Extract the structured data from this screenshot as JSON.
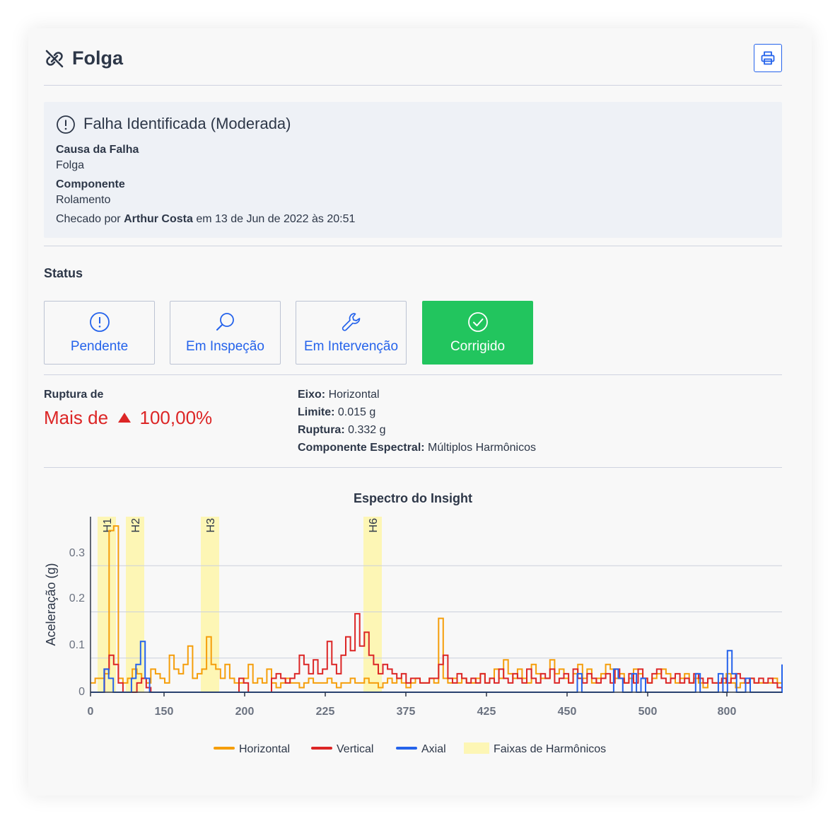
{
  "header": {
    "title": "Folga",
    "title_icon": "disconnected-link-icon",
    "print_icon": "printer-icon"
  },
  "fault": {
    "title": "Falha Identificada (Moderada)",
    "cause_label": "Causa da Falha",
    "cause_value": "Folga",
    "component_label": "Componente",
    "component_value": "Rolamento",
    "checked_prefix": "Checado por",
    "checked_by": "Arthur Costa",
    "checked_suffix": "em 13 de Jun de 2022 às 20:51"
  },
  "status": {
    "title": "Status",
    "buttons": [
      {
        "label": "Pendente",
        "icon": "alert-circle-icon",
        "active": false
      },
      {
        "label": "Em Inspeção",
        "icon": "search-icon",
        "active": false
      },
      {
        "label": "Em Intervenção",
        "icon": "wrench-icon",
        "active": false
      },
      {
        "label": "Corrigido",
        "icon": "check-circle-icon",
        "active": true
      }
    ]
  },
  "rupture": {
    "label": "Ruptura de",
    "prefix": "Mais de",
    "value": "100,00%",
    "up_icon": "triangle-up-icon",
    "eixo_label": "Eixo:",
    "eixo_value": "Horizontal",
    "limite_label": "Limite:",
    "limite_value": "0.015 g",
    "ruptura_label": "Ruptura:",
    "ruptura_value": "0.332 g",
    "comp_label": "Componente Espectral:",
    "comp_value": "Múltiplos Harmônicos"
  },
  "colors": {
    "horizontal": "#f59e0b",
    "vertical": "#dc2626",
    "axial": "#2563eb",
    "band": "#fdf6b5",
    "accent": "#2563eb",
    "success": "#22c55e"
  },
  "chart_data": {
    "type": "line",
    "title": "Espectro do Insight",
    "ylabel": "Aceleração (g)",
    "xlabel": "",
    "ylim": [
      0,
      0.38
    ],
    "xticks": [
      "0",
      "150",
      "200",
      "225",
      "375",
      "425",
      "450",
      "500",
      "800"
    ],
    "yticks": [
      "0",
      "0.1",
      "0.2",
      "0.3"
    ],
    "grid": true,
    "legend_position": "bottom",
    "harmonic_bands": [
      {
        "label": "H1",
        "index": 0
      },
      {
        "label": "H2",
        "index": 1
      },
      {
        "label": "H3",
        "index": 2
      },
      {
        "label": "H6",
        "index": 3
      }
    ],
    "legend": [
      {
        "name": "Horizontal",
        "color": "#f59e0b"
      },
      {
        "name": "Vertical",
        "color": "#dc2626"
      },
      {
        "name": "Axial",
        "color": "#2563eb"
      },
      {
        "name": "Faixas de Harmônicos",
        "color": "#fdf6b5"
      }
    ],
    "series": [
      {
        "name": "Horizontal",
        "color": "#f59e0b",
        "values": [
          0.02,
          0.03,
          0.03,
          0.04,
          0.35,
          0.36,
          0.03,
          0.02,
          0.03,
          0.05,
          0.04,
          0.03,
          0.02,
          0.05,
          0.04,
          0.03,
          0.02,
          0.08,
          0.05,
          0.04,
          0.06,
          0.1,
          0.03,
          0.04,
          0.05,
          0.12,
          0.06,
          0.05,
          0.03,
          0.06,
          0.03,
          0.02,
          0.02,
          0.03,
          0.06,
          0.02,
          0.03,
          0.02,
          0.05,
          0.02,
          0.01,
          0.02,
          0.03,
          0.02,
          0.02,
          0.01,
          0.02,
          0.03,
          0.02,
          0.02,
          0.02,
          0.03,
          0.02,
          0.01,
          0.02,
          0.02,
          0.03,
          0.02,
          0.02,
          0.03,
          0.02,
          0.02,
          0.01,
          0.02,
          0.03,
          0.02,
          0.03,
          0.02,
          0.01,
          0.02,
          0.03,
          0.02,
          0.02,
          0.03,
          0.02,
          0.16,
          0.03,
          0.02,
          0.03,
          0.02,
          0.03,
          0.02,
          0.02,
          0.03,
          0.04,
          0.02,
          0.03,
          0.05,
          0.03,
          0.07,
          0.04,
          0.03,
          0.05,
          0.03,
          0.02,
          0.06,
          0.04,
          0.03,
          0.03,
          0.07,
          0.04,
          0.05,
          0.03,
          0.02,
          0.04,
          0.06,
          0.03,
          0.05,
          0.02,
          0.03,
          0.04,
          0.06,
          0.05,
          0.03,
          0.04,
          0.02,
          0.03,
          0.05,
          0.04,
          0.03,
          0.02,
          0.03,
          0.04,
          0.05,
          0.04,
          0.03,
          0.02,
          0.03,
          0.04,
          0.02,
          0.03,
          0.02,
          0.01,
          0.03,
          0.02,
          0.02,
          0.02,
          0.04,
          0.02,
          0.01,
          0.02,
          0.02,
          0.03,
          0.02,
          0.02,
          0.02,
          0.02,
          0.03,
          0.02,
          0.02
        ]
      },
      {
        "name": "Vertical",
        "color": "#dc2626",
        "values": [
          0,
          0,
          0,
          0.05,
          0.08,
          0.06,
          0.02,
          0,
          0,
          0,
          0.02,
          0.03,
          0.01,
          0,
          0,
          0,
          0,
          0,
          0,
          0,
          0,
          0,
          0,
          0,
          0,
          0,
          0,
          0,
          0,
          0,
          0,
          0,
          0.03,
          0.02,
          0,
          0,
          0,
          0,
          0,
          0.03,
          0.04,
          0.03,
          0.02,
          0.03,
          0.04,
          0.08,
          0.06,
          0.04,
          0.07,
          0.04,
          0.05,
          0.11,
          0.06,
          0.04,
          0.08,
          0.12,
          0.09,
          0.17,
          0.1,
          0.13,
          0.08,
          0.06,
          0.04,
          0.06,
          0.05,
          0.04,
          0.03,
          0.04,
          0.02,
          0.03,
          0.03,
          0.02,
          0.02,
          0.03,
          0.03,
          0.06,
          0.08,
          0.03,
          0.02,
          0.04,
          0.03,
          0.02,
          0.03,
          0.02,
          0.04,
          0.02,
          0.03,
          0.02,
          0.05,
          0.03,
          0.02,
          0.04,
          0.03,
          0.02,
          0.05,
          0.03,
          0.02,
          0.04,
          0.03,
          0.05,
          0.02,
          0.03,
          0.04,
          0.02,
          0.05,
          0.03,
          0.02,
          0.04,
          0.03,
          0.02,
          0.03,
          0.04,
          0.02,
          0.05,
          0.03,
          0.02,
          0.04,
          0.02,
          0.05,
          0.03,
          0.02,
          0.04,
          0.05,
          0.03,
          0.02,
          0.03,
          0.04,
          0.02,
          0.03,
          0.02,
          0.04,
          0.03,
          0.02,
          0.03,
          0.02,
          0.02,
          0.03,
          0.02,
          0.03,
          0.04,
          0.03,
          0.02,
          0.03,
          0.02,
          0.03,
          0.02,
          0.03,
          0.02,
          0.01,
          0.01
        ]
      },
      {
        "name": "Axial",
        "color": "#2563eb",
        "values": [
          0,
          0,
          0,
          0.05,
          0.03,
          0,
          0,
          0,
          0,
          0.03,
          0.06,
          0.11,
          0.03,
          0,
          0,
          0,
          0,
          0,
          0,
          0,
          0,
          0,
          0,
          0,
          0,
          0,
          0,
          0,
          0,
          0,
          0,
          0,
          0,
          0,
          0,
          0,
          0,
          0,
          0,
          0,
          0,
          0,
          0,
          0,
          0,
          0,
          0,
          0,
          0,
          0,
          0,
          0,
          0,
          0,
          0,
          0,
          0,
          0,
          0,
          0,
          0,
          0,
          0,
          0,
          0,
          0,
          0,
          0,
          0,
          0,
          0,
          0,
          0,
          0,
          0,
          0,
          0,
          0,
          0,
          0,
          0,
          0,
          0,
          0,
          0,
          0,
          0,
          0,
          0,
          0,
          0,
          0,
          0,
          0,
          0,
          0,
          0,
          0,
          0,
          0,
          0,
          0,
          0,
          0,
          0,
          0,
          0,
          0.04,
          0,
          0,
          0,
          0,
          0,
          0,
          0,
          0.05,
          0.03,
          0,
          0,
          0.04,
          0,
          0.03,
          0,
          0,
          0,
          0,
          0,
          0,
          0,
          0,
          0,
          0,
          0,
          0.04,
          0,
          0,
          0,
          0,
          0.04,
          0,
          0.09,
          0.04,
          0,
          0,
          0.03,
          0,
          0,
          0,
          0,
          0,
          0,
          0,
          0.06
        ]
      }
    ]
  }
}
